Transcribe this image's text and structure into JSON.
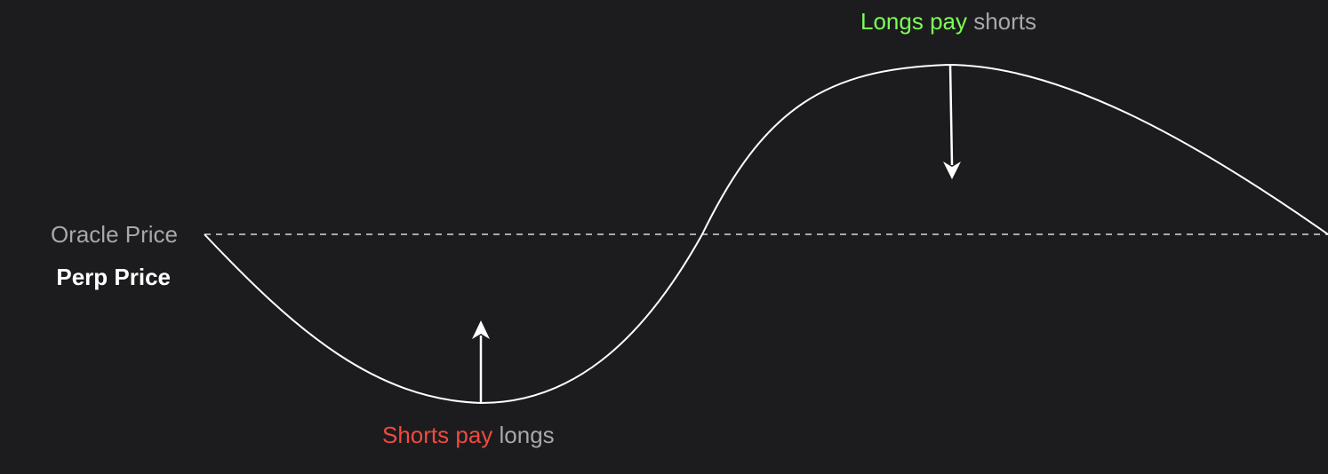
{
  "labels": {
    "oracle_price": "Oracle Price",
    "perp_price": "Perp Price",
    "longs_pay_highlight": "Longs pay",
    "longs_pay_rest": " shorts",
    "shorts_pay_highlight": "Shorts pay",
    "shorts_pay_rest": " longs"
  },
  "colors": {
    "background": "#1c1c1e",
    "curve": "#ffffff",
    "oracle_line": "#a8a8a8",
    "longs_pay_highlight": "#7cff56",
    "shorts_pay_highlight": "#f04a3f",
    "muted_text": "#a8a8a8"
  }
}
